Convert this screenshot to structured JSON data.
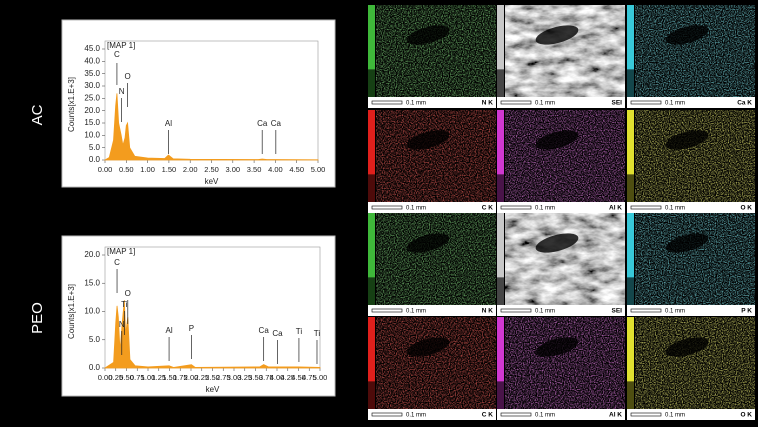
{
  "samples": [
    "AC",
    "PEO"
  ],
  "chart_data": [
    {
      "type": "area",
      "title": "[MAP 1]",
      "y_label": "Counts[x1.E+3]",
      "x_label": "keV",
      "color": "#f39c1e",
      "x": [
        0,
        0.1,
        0.2,
        0.25,
        0.28,
        0.32,
        0.38,
        0.42,
        0.47,
        0.5,
        0.53,
        0.58,
        0.7,
        1.0,
        1.4,
        1.49,
        1.6,
        2.0,
        3.6,
        3.69,
        3.8,
        4.0,
        5.0
      ],
      "values": [
        0,
        1,
        8,
        22,
        27,
        15,
        10,
        6,
        9,
        14,
        15,
        5,
        1.5,
        0.8,
        0.6,
        2,
        0.5,
        0.3,
        0.2,
        0.4,
        0.2,
        0.2,
        0.1
      ],
      "xlim": [
        0,
        5
      ],
      "ylim": [
        0,
        45
      ],
      "xticks": [
        {
          "value": 0,
          "label": "0.00"
        },
        {
          "value": 0.5,
          "label": "0.50"
        },
        {
          "value": 1,
          "label": "1.00"
        },
        {
          "value": 1.5,
          "label": "1.50"
        },
        {
          "value": 2,
          "label": "2.00"
        },
        {
          "value": 2.5,
          "label": "2.50"
        },
        {
          "value": 3,
          "label": "3.00"
        },
        {
          "value": 3.5,
          "label": "3.50"
        },
        {
          "value": 4,
          "label": "4.00"
        },
        {
          "value": 4.5,
          "label": "4.50"
        },
        {
          "value": 5,
          "label": "5.00"
        }
      ],
      "yticks": [
        {
          "value": 0,
          "label": "0.0"
        },
        {
          "value": 5,
          "label": "5.0"
        },
        {
          "value": 10,
          "label": "10.0"
        },
        {
          "value": 15,
          "label": "15.0"
        },
        {
          "value": 20,
          "label": "20.0"
        },
        {
          "value": 25,
          "label": "25.0"
        },
        {
          "value": 30,
          "label": "30.0"
        },
        {
          "value": 35,
          "label": "35.0"
        },
        {
          "value": 40,
          "label": "40.0"
        },
        {
          "value": 45,
          "label": "45.0"
        }
      ],
      "annotations": [
        {
          "label": "C",
          "x": 0.28
        },
        {
          "label": "N",
          "x": 0.39
        },
        {
          "label": "O",
          "x": 0.53
        },
        {
          "label": "Al",
          "x": 1.49
        },
        {
          "label": "Ca",
          "x": 3.69
        },
        {
          "label": "Ca",
          "x": 4.01
        }
      ]
    },
    {
      "type": "area",
      "title": "[MAP 1]",
      "y_label": "Counts[x1.E+3]",
      "x_label": "keV",
      "color": "#f39c1e",
      "x": [
        0,
        0.2,
        0.25,
        0.28,
        0.31,
        0.35,
        0.4,
        0.45,
        0.48,
        0.53,
        0.58,
        0.7,
        1.0,
        1.49,
        1.6,
        2.01,
        2.1,
        3.6,
        3.69,
        3.8,
        4.5,
        5.0
      ],
      "values": [
        0,
        1,
        8,
        11,
        9,
        3,
        8,
        12,
        6,
        9,
        1.5,
        0.4,
        0.2,
        0.4,
        0.1,
        0.6,
        0.1,
        0.2,
        0.6,
        0.2,
        0.2,
        0.1
      ],
      "xlim": [
        0,
        5
      ],
      "ylim": [
        0,
        20
      ],
      "xticks": [
        {
          "value": 0,
          "label": "0.00"
        },
        {
          "value": 0.25,
          "label": "0.25"
        },
        {
          "value": 0.5,
          "label": "0.50"
        },
        {
          "value": 0.75,
          "label": "0.75"
        },
        {
          "value": 1,
          "label": "1.00"
        },
        {
          "value": 1.25,
          "label": "1.25"
        },
        {
          "value": 1.5,
          "label": "1.50"
        },
        {
          "value": 1.75,
          "label": "1.75"
        },
        {
          "value": 2,
          "label": "2.00"
        },
        {
          "value": 2.25,
          "label": "2.25"
        },
        {
          "value": 2.5,
          "label": "2.50"
        },
        {
          "value": 2.75,
          "label": "2.75"
        },
        {
          "value": 3,
          "label": "3.00"
        },
        {
          "value": 3.25,
          "label": "3.25"
        },
        {
          "value": 3.5,
          "label": "3.50"
        },
        {
          "value": 3.75,
          "label": "3.75"
        },
        {
          "value": 4,
          "label": "4.00"
        },
        {
          "value": 4.25,
          "label": "4.25"
        },
        {
          "value": 4.5,
          "label": "4.50"
        },
        {
          "value": 4.75,
          "label": "4.75"
        },
        {
          "value": 5,
          "label": "5.00"
        }
      ],
      "yticks": [
        {
          "value": 0,
          "label": "0.0"
        },
        {
          "value": 5,
          "label": "5.0"
        },
        {
          "value": 10,
          "label": "10.0"
        },
        {
          "value": 15,
          "label": "15.0"
        },
        {
          "value": 20,
          "label": "20.0"
        }
      ],
      "annotations": [
        {
          "label": "C",
          "x": 0.28
        },
        {
          "label": "O",
          "x": 0.53
        },
        {
          "label": "Ti",
          "x": 0.45
        },
        {
          "label": "N",
          "x": 0.39
        },
        {
          "label": "Al",
          "x": 1.49
        },
        {
          "label": "P",
          "x": 2.01
        },
        {
          "label": "Ca",
          "x": 3.69
        },
        {
          "label": "Ca",
          "x": 4.01
        },
        {
          "label": "Ti",
          "x": 4.51
        },
        {
          "label": "Ti",
          "x": 4.93
        }
      ]
    }
  ],
  "maps": [
    {
      "scale": "0.1 mm",
      "element": "N K",
      "color": "#3fb83a"
    },
    {
      "scale": "0.1 mm",
      "element": "SEI",
      "color": "#c8c8c8"
    },
    {
      "scale": "0.1 mm",
      "element": "Ca K",
      "color": "#38c8d8"
    },
    {
      "scale": "0.1 mm",
      "element": "C K",
      "color": "#e0201c"
    },
    {
      "scale": "0.1 mm",
      "element": "Al K",
      "color": "#d038d0"
    },
    {
      "scale": "0.1 mm",
      "element": "O K",
      "color": "#e0e030"
    },
    {
      "scale": "0.1 mm",
      "element": "N K",
      "color": "#3fb83a"
    },
    {
      "scale": "0.1 mm",
      "element": "SEI",
      "color": "#c8c8c8"
    },
    {
      "scale": "0.1 mm",
      "element": "P K",
      "color": "#38c8d8"
    },
    {
      "scale": "0.1 mm",
      "element": "C K",
      "color": "#e0201c"
    },
    {
      "scale": "0.1 mm",
      "element": "Al K",
      "color": "#d038d0"
    },
    {
      "scale": "0.1 mm",
      "element": "O K",
      "color": "#e0e030"
    }
  ]
}
